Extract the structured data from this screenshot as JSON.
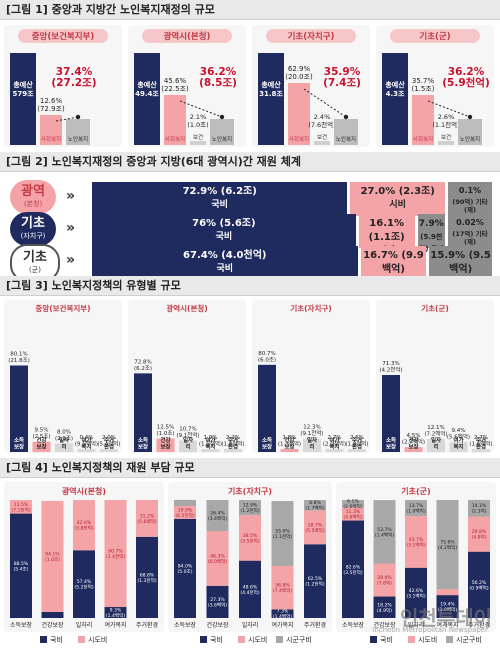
{
  "colors": {
    "navy": "#1f2a5e",
    "pink": "#f4a3a7",
    "gray": "#8c8c8c",
    "red": "#c8102e",
    "light": "#f6f6f6"
  },
  "fig1": {
    "title": "[그림 1]  중앙과 지방간 노인복지재정의 규모",
    "panels": [
      {
        "header": "중앙(보건복지부)",
        "total_label": "총예산",
        "total_value": "579조",
        "share_main": "37.4%",
        "share_main_amt": "(27.2조)",
        "share_sub": "12.6%",
        "share_sub_amt": "(72.9조)",
        "cat_label": "사회복지",
        "small_label": "노인복지",
        "second_label": ""
      },
      {
        "header": "광역시(본청)",
        "total_label": "총예산",
        "total_value": "49.4조",
        "share_sub": "45.6%",
        "share_sub_amt": "(22.5조)",
        "cat_label": "사회복지",
        "second_share": "2.1%",
        "second_amt": "(1.0조)",
        "second_label": "보건",
        "share_main": "36.2%",
        "share_main_amt": "(8.5조)",
        "small_label": "노인복지"
      },
      {
        "header": "기초(자치구)",
        "total_label": "총예산",
        "total_value": "31.8조",
        "share_sub": "62.9%",
        "share_sub_amt": "(20.0조)",
        "cat_label": "사회복지",
        "second_share": "2.4%",
        "second_amt": "(7.6천억)",
        "second_label": "보건",
        "share_main": "35.9%",
        "share_main_amt": "(7.4조)",
        "small_label": "노인복지"
      },
      {
        "header": "기초(군)",
        "total_label": "총예산",
        "total_value": "4.3조",
        "share_sub": "35.7%",
        "share_sub_amt": "(1.5조)",
        "cat_label": "사회복지",
        "second_share": "2.6%",
        "second_amt": "(1.1천억)",
        "second_label": "보건",
        "share_main": "36.2%",
        "share_main_amt": "(5.9천억)",
        "small_label": "노인복지"
      }
    ]
  },
  "fig2": {
    "title": "[그림 2]  노인복지재정의 중앙과 지방(6대 광역시)간 재원 체계",
    "rows": [
      {
        "name": "광역",
        "sub": "(본청)",
        "style": "pink",
        "segs": [
          {
            "pct": 72.9,
            "line1": "72.9% (6.2조)",
            "line2": "국비",
            "color": "navy",
            "text": "#ffffff"
          },
          {
            "pct": 27.0,
            "line1": "27.0% (2.3조)",
            "line2": "시비",
            "color": "pink",
            "text": "#222222"
          },
          {
            "pct": 0.1,
            "line1": "0.1%",
            "line2": "(90억)",
            "line3": "기타(재)",
            "color": "gray",
            "text": "#222222"
          }
        ]
      },
      {
        "name": "기초",
        "sub": "(자치구)",
        "style": "navy",
        "segs": [
          {
            "pct": 76,
            "line1": "76% (5.6조)",
            "line2": "국비",
            "color": "navy",
            "text": "#ffffff"
          },
          {
            "pct": 16.1,
            "line1": "16.1% (1.1조)",
            "line2": "시비",
            "color": "pink",
            "text": "#222222"
          },
          {
            "pct": 7.9,
            "line1": "7.9%",
            "line2": "(5.9천억)",
            "line3": "구비",
            "color": "gray",
            "text": "#222222"
          },
          {
            "pct": 0.02,
            "line1": "0.02%",
            "line2": "(17억)",
            "line3": "기타(재)",
            "color": "gray",
            "text": "#222222"
          }
        ]
      },
      {
        "name": "기초",
        "sub": "(군)",
        "style": "gray",
        "segs": [
          {
            "pct": 67.4,
            "line1": "67.4% (4.0천억)",
            "line2": "국비",
            "color": "navy",
            "text": "#ffffff"
          },
          {
            "pct": 16.7,
            "line1": "16.7% (9.9백억)",
            "line2": "시비",
            "color": "pink",
            "text": "#222222"
          },
          {
            "pct": 15.9,
            "line1": "15.9% (9.5백억)",
            "line2": "구비",
            "color": "gray",
            "text": "#222222"
          }
        ]
      }
    ]
  },
  "chart_data": [
    {
      "type": "bar",
      "title": "[그림 3]  노인복지정책의 유형별 규모",
      "groups": [
        {
          "header": "중앙(보건복지부)",
          "categories": [
            "소득보장",
            "건강보장",
            "일자리",
            "여가복지",
            "주거환경"
          ],
          "values": [
            80.1,
            9.5,
            8.0,
            0.4,
            2.0
          ],
          "labels": [
            "80.1%\n(21.8조)",
            "9.5%\n(2.5조)",
            "8.0%\n(2.1조)",
            "0.4%\n(9.5백억)",
            "2.0%\n(5.4천억)"
          ]
        },
        {
          "header": "광역시(본청)",
          "categories": [
            "소득보장",
            "건강보장",
            "일자리",
            "여가복지",
            "주거환경"
          ],
          "values": [
            72.8,
            12.5,
            10.7,
            1.9,
            2.2
          ],
          "labels": [
            "72.8%\n(6.2조)",
            "12.5%\n(1.0조)",
            "10.7%\n(9.1천억)",
            "1.9%\n(1.5천억)",
            "2.2%\n(1.8천억)"
          ]
        },
        {
          "header": "기초(자치구)",
          "categories": [
            "소득보장",
            "건강보장",
            "일자리",
            "여가복지",
            "주거환경"
          ],
          "values": [
            80.7,
            1.8,
            12.3,
            2.7,
            2.6
          ],
          "labels": [
            "80.7%\n(6.0조)",
            "1.8%\n(1.3천억)",
            "12.3%\n(9.1천억)",
            "2.7%\n(2.0천억)",
            "2.6%\n(1.9천억)"
          ]
        },
        {
          "header": "기초(군)",
          "categories": [
            "소득보장",
            "건강보장",
            "일자리",
            "여가복지",
            "주거환경"
          ],
          "values": [
            71.3,
            4.5,
            12.1,
            9.4,
            2.7
          ],
          "labels": [
            "71.3%\n(4.2천억)",
            "4.5%\n(2.7백억)",
            "12.1%\n(7.2백억)",
            "9.4%\n(5.6백억)",
            "2.7%\n(1.6백억)"
          ]
        }
      ]
    },
    {
      "type": "bar",
      "stacked": true,
      "title": "[그림 4]  노인복지정책의 재원 부담 규모",
      "categories": [
        "소득보장",
        "건강보장",
        "일자리",
        "여가복지",
        "주거환경"
      ],
      "legend": [
        "국비",
        "시도비",
        "시군구비"
      ],
      "groups": [
        {
          "header": "광역시(본청)",
          "series": [
            {
              "name": "국비",
              "values": [
                88.5,
                5.1,
                57.4,
                9.3,
                68.8
              ],
              "labels": [
                "88.5%\n(5.4조)",
                "5.1%\n(5.3백억)",
                "57.4%\n(5.2천억)",
                "9.3%\n(1.4백억)",
                "68.8%\n(1.3천억)"
              ]
            },
            {
              "name": "시도비",
              "values": [
                11.5,
                94.1,
                42.6,
                90.7,
                31.2
              ],
              "labels": [
                "11.5%\n(7.1천억)",
                "94.1%\n(1.0조)",
                "42.6%\n(3.8천억)",
                "90.7%\n(1.4천억)",
                "31.2%\n(5.6백억)"
              ]
            }
          ]
        },
        {
          "header": "기초(자치구)",
          "series": [
            {
              "name": "국비",
              "values": [
                84.0,
                27.3,
                48.6,
                7.3,
                62.5
              ],
              "labels": [
                "84.0%\n(5.0조)",
                "27.3%\n(3.6백억)",
                "48.6%\n(4.4천억)",
                "7.3%\n(1.4백억)",
                "62.5%\n(1.2천억)"
              ]
            },
            {
              "name": "시도비",
              "values": [
                10.9,
                46.3,
                38.5,
                36.8,
                28.7
              ],
              "labels": [
                "10.9%\n(6.5천억)",
                "46.3%\n(6.0백억)",
                "38.5%\n(3.5천억)",
                "36.8%\n(7.4백억)",
                "28.7%\n(5.5백억)"
              ]
            },
            {
              "name": "시군구비",
              "values": [
                5.2,
                26.4,
                12.9,
                55.0,
                8.8
              ],
              "labels": [
                "5.2%\n(3.1천억)",
                "26.4%\n(3.4백억)",
                "12.9%\n(1.2천억)",
                "55.0%\n(1.1천억)",
                "8.8%\n(1.7백억)"
              ]
            }
          ]
        },
        {
          "header": "기초(군)",
          "series": [
            {
              "name": "국비",
              "values": [
                82.6,
                18.2,
                42.6,
                19.4,
                56.2
              ],
              "labels": [
                "82.6%\n(3.5천억)",
                "18.2%\n(4.9억)",
                "42.6%\n(3.1백억)",
                "19.4%\n(1.0백억)",
                "56.2%\n(0.9백억)"
              ]
            },
            {
              "name": "시도비",
              "values": [
                11.3,
                28.0,
                43.7,
                5.0,
                29.8
              ],
              "labels": [
                "11.3%\n(4.8백억)",
                "28.0%\n(7.6억)",
                "43.7%\n(3.1백억)",
                "5.0%\n(0.3백억)",
                "29.8%\n(4.8억)"
              ]
            },
            {
              "name": "시군구비",
              "values": [
                6.1,
                53.7,
                13.7,
                75.6,
                14.1
              ],
              "labels": [
                "6.1%\n(2.6백억)",
                "53.7%\n(1.4백억)",
                "13.7%\n(1.0백억)",
                "75.6%\n(4.2백억)",
                "14.1%\n(2.3억)"
              ]
            }
          ]
        }
      ]
    }
  ],
  "watermark": {
    "name": "인천투데이",
    "sub": "Incheon Metropolitan Newspaper"
  }
}
